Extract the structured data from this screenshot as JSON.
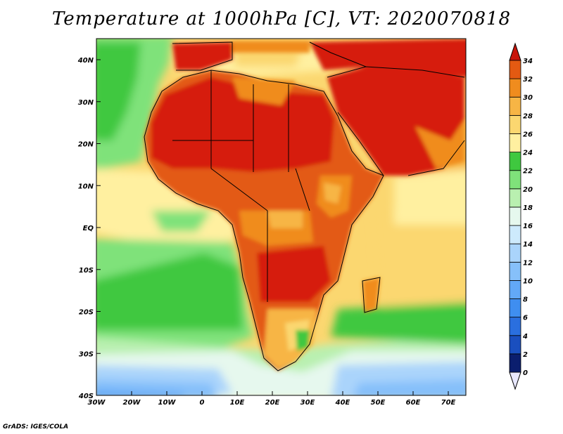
{
  "title": "Temperature at 1000hPa [C], VT: 2020070818",
  "credit": "GrADS: IGES/COLA",
  "map": {
    "region": "Africa",
    "variable": "Temperature at 1000hPa",
    "units": "C",
    "valid_time": "2020070818",
    "lon_labels": [
      "30W",
      "20W",
      "10W",
      "0",
      "10E",
      "20E",
      "30E",
      "40E",
      "50E",
      "60E",
      "70E"
    ],
    "lat_labels": [
      "40N",
      "30N",
      "20N",
      "10N",
      "EQ",
      "10S",
      "20S",
      "30S",
      "40S"
    ]
  },
  "colorbar": {
    "levels": [
      "0",
      "2",
      "4",
      "6",
      "8",
      "10",
      "12",
      "14",
      "16",
      "18",
      "20",
      "22",
      "24",
      "26",
      "28",
      "30",
      "32",
      "34"
    ],
    "colors": [
      "#0b1e6e",
      "#1a4fbf",
      "#2a6fdf",
      "#3f8ef0",
      "#62a8f7",
      "#86c0fa",
      "#aad4fb",
      "#cdeafc",
      "#e6f8ee",
      "#b9f0b0",
      "#7fe27a",
      "#3fc83f",
      "#fff0a0",
      "#fbd770",
      "#f7b545",
      "#f08c1e",
      "#e35a12",
      "#d61f0c"
    ],
    "under_color": "#e8e8ff",
    "over_color": "#c8140a"
  }
}
